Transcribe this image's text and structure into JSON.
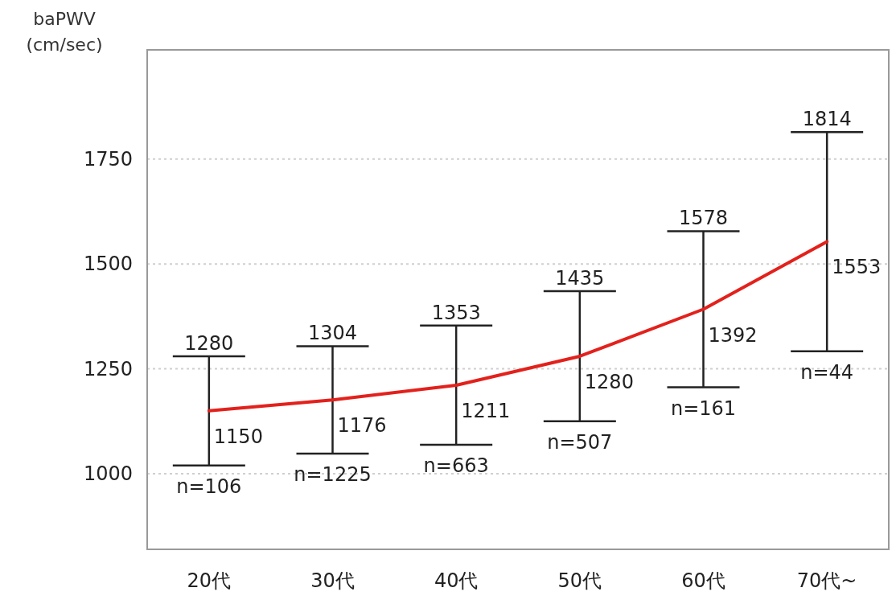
{
  "chart_data": {
    "type": "line",
    "ylabel": "baPWV (cm/sec)",
    "categories": [
      "20代",
      "30代",
      "40代",
      "50代",
      "60代",
      "70代~"
    ],
    "series": [
      {
        "color": "#e3211c",
        "values": [
          1150,
          1176,
          1211,
          1280,
          1392,
          1553
        ],
        "errors": [
          130,
          128,
          142,
          155,
          186,
          261
        ]
      }
    ],
    "data_labels": true,
    "ylim": [
      820,
      2010
    ],
    "yticks": [
      1000,
      1250,
      1500,
      1750
    ],
    "grid": "y",
    "annotations": [
      {
        "text": "1280",
        "x": "20代",
        "y": 1280
      },
      {
        "text": "1304",
        "x": "30代",
        "y": 1304
      },
      {
        "text": "1353",
        "x": "40代",
        "y": 1353
      },
      {
        "text": "1435",
        "x": "50代",
        "y": 1435
      },
      {
        "text": "1578",
        "x": "60代",
        "y": 1578
      },
      {
        "text": "1814",
        "x": "70代~",
        "y": 1814
      },
      "n=106",
      "n=1225",
      "n=663",
      "n=507",
      "n=161",
      "n=44"
    ]
  }
}
